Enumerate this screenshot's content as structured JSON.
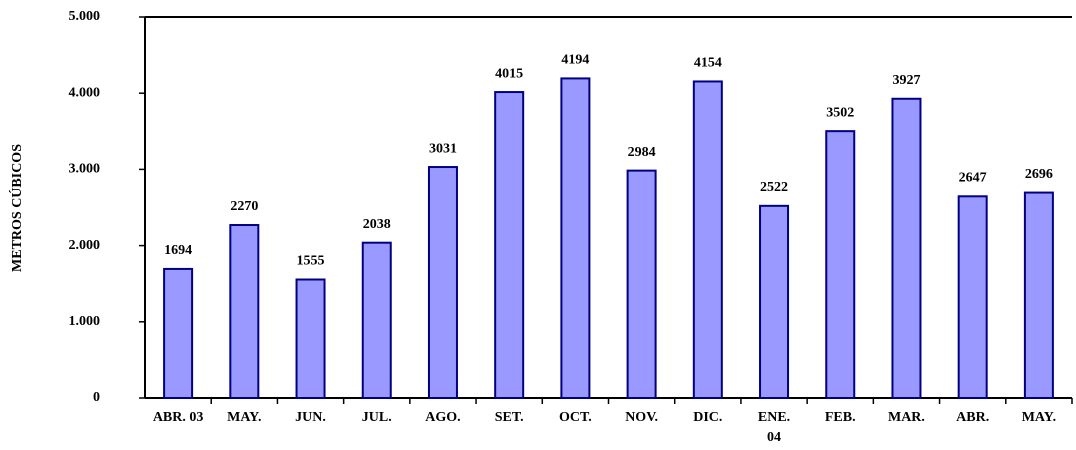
{
  "chart_data": {
    "type": "bar",
    "y_label": "METROS CÚBICOS",
    "categories": [
      "ABR. 03",
      "MAY.",
      "JUN.",
      "JUL.",
      "AGO.",
      "SET.",
      "OCT.",
      "NOV.",
      "DIC.",
      "ENE.\n04",
      "FEB.",
      "MAR.",
      "ABR.",
      "MAY."
    ],
    "values": [
      1694,
      2270,
      1555,
      2038,
      3031,
      4015,
      4194,
      2984,
      4154,
      2522,
      3502,
      3927,
      2647,
      2696
    ],
    "color": "#9999ff",
    "edge_color": "#000080",
    "ylim": [
      0,
      5000
    ],
    "yticks": [
      0,
      {
        "value": 1000,
        "label": "1.000"
      },
      {
        "value": 2000,
        "label": "2.000"
      },
      {
        "value": 3000,
        "label": "3.000"
      },
      {
        "value": 4000,
        "label": "4.000"
      },
      {
        "value": 5000,
        "label": "5.000"
      }
    ],
    "grid": false
  }
}
